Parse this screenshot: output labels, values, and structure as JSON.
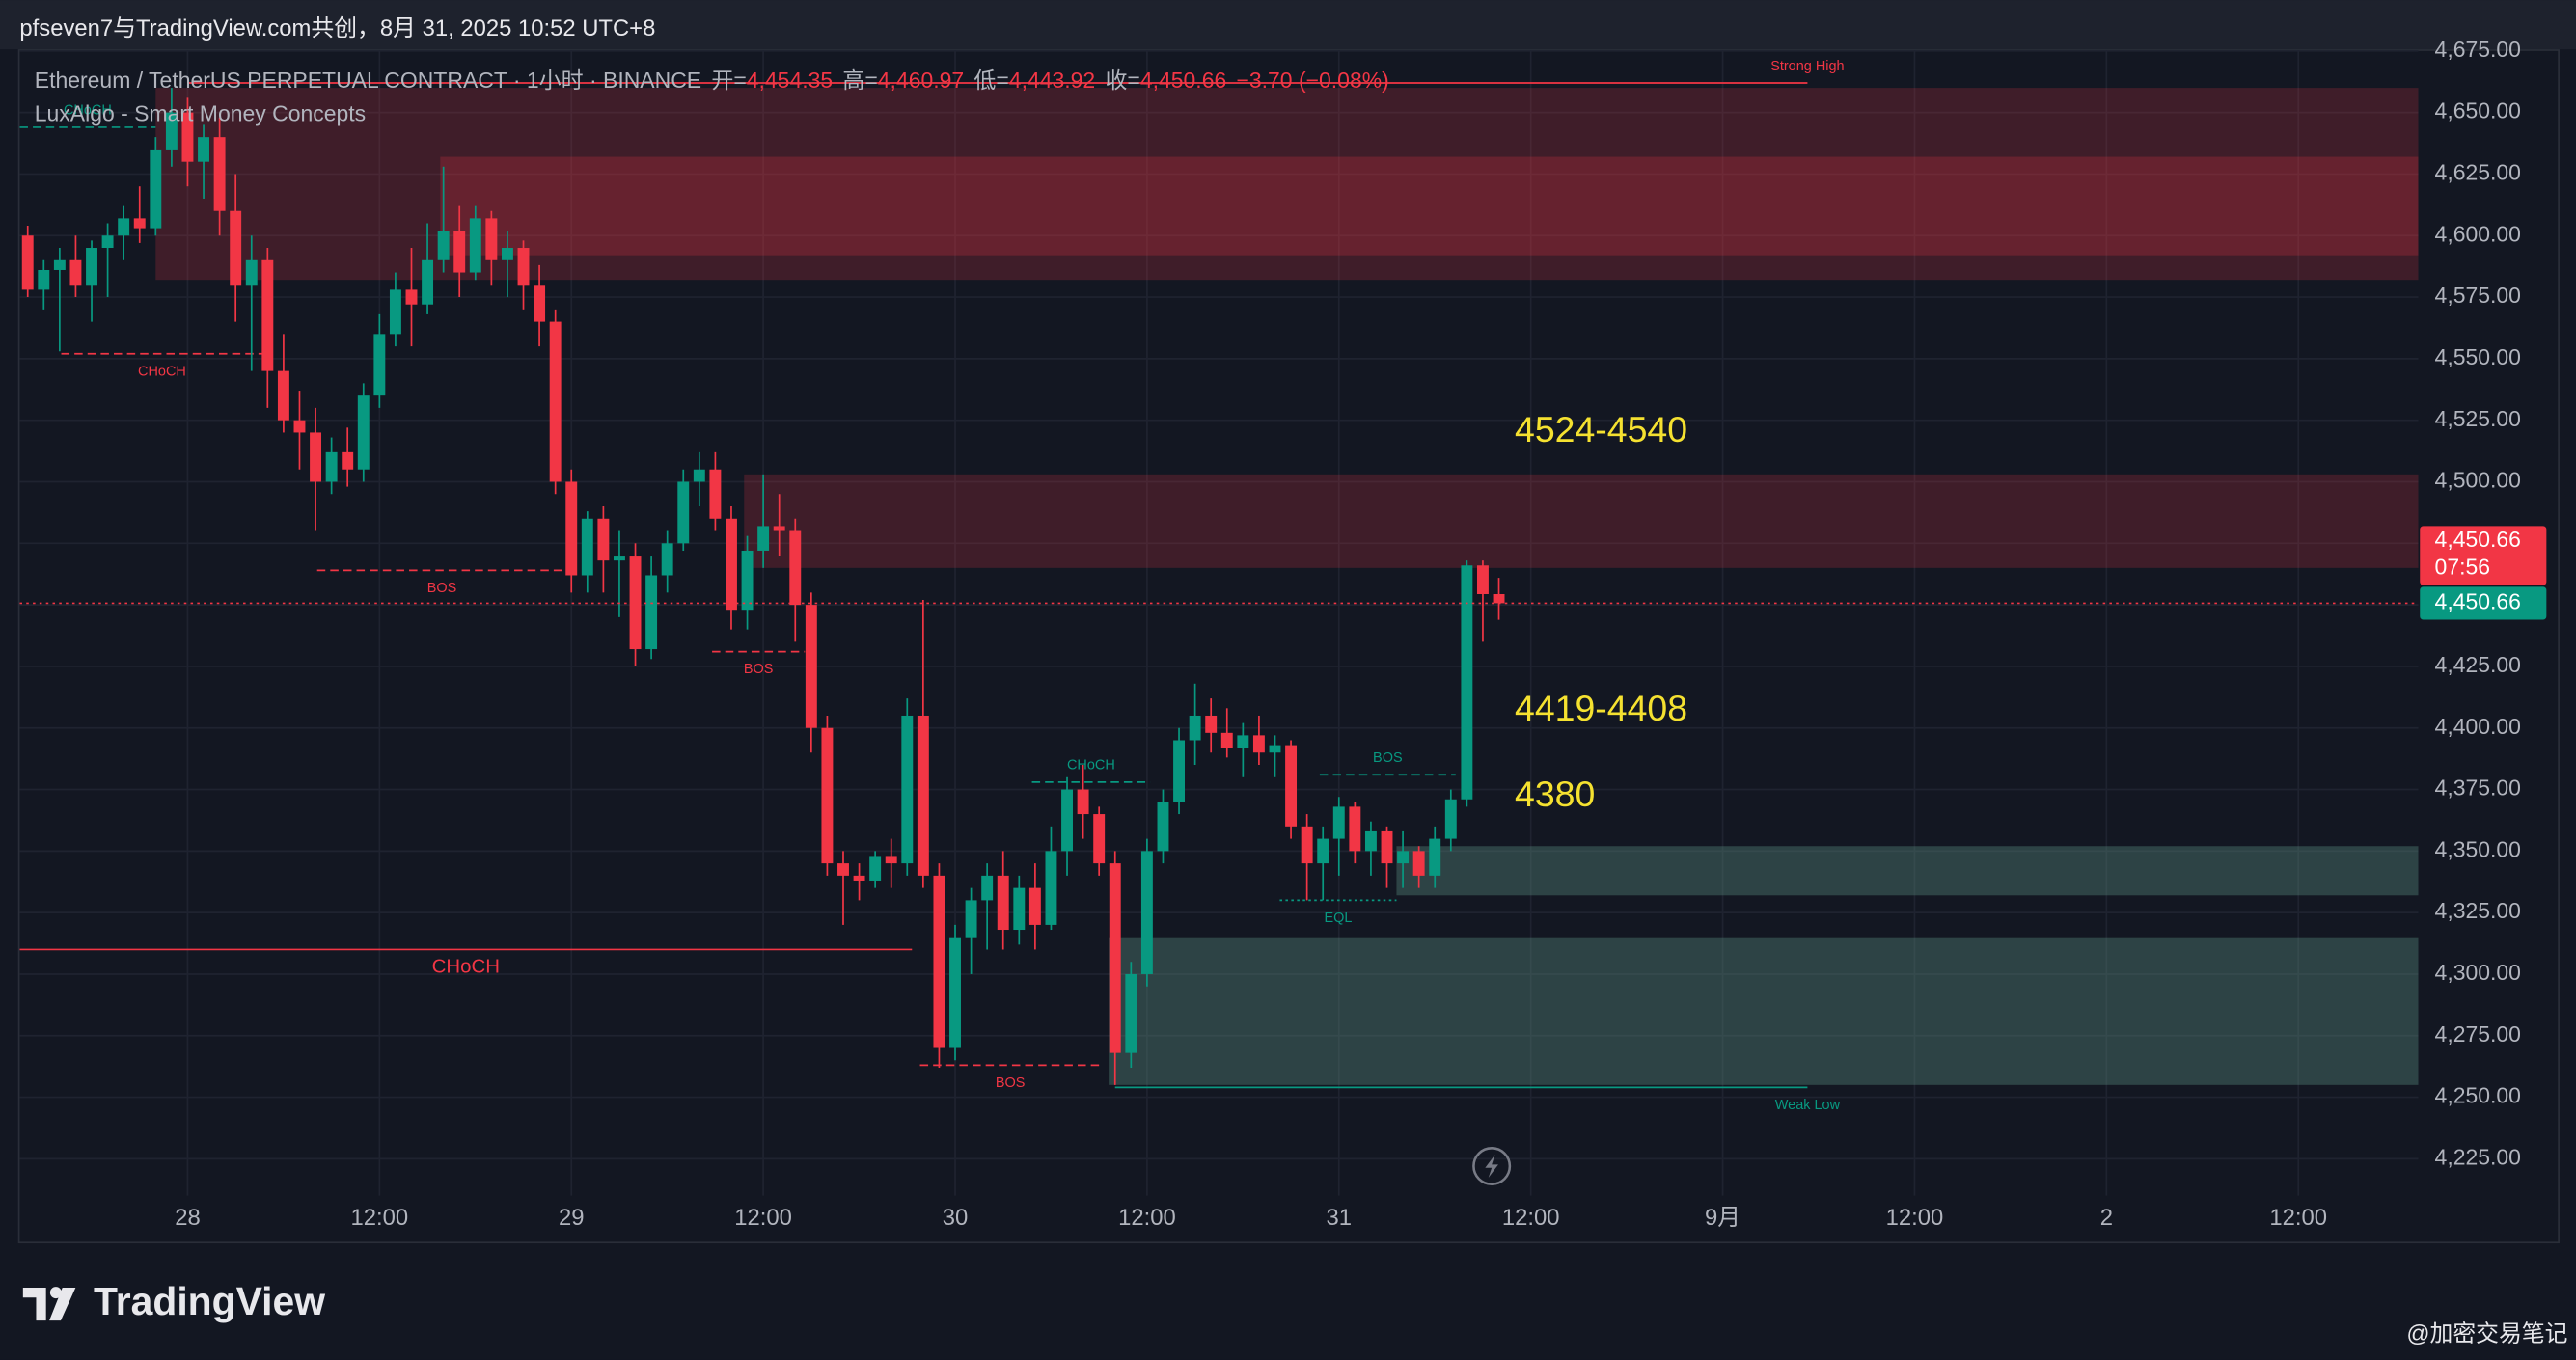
{
  "header": {
    "title": "pfseven7与TradingView.com共创，8月 31, 2025 10:52 UTC+8"
  },
  "chart_data": {
    "type": "candlestick",
    "legend": {
      "symbol": "Ethereum / TetherUS PERPETUAL CONTRACT · 1小时 · BINANCE",
      "fields": [
        {
          "label": "开=",
          "value": "4,454.35"
        },
        {
          "label": "高=",
          "value": "4,460.97"
        },
        {
          "label": "低=",
          "value": "4,443.92"
        },
        {
          "label": "收=",
          "value": "4,450.66"
        }
      ],
      "change": "−3.70 (−0.08%)",
      "indicator": "LuxAlgo - Smart Money Concepts"
    },
    "up_color": "#089981",
    "down_color": "#f23645",
    "open": [
      4600,
      4578,
      4586,
      4590,
      4580,
      4595,
      4600,
      4607,
      4603,
      4635,
      4650,
      4630,
      4640,
      4610,
      4580,
      4590,
      4545,
      4525,
      4520,
      4500,
      4512,
      4505,
      4535,
      4560,
      4578,
      4572,
      4590,
      4602,
      4585,
      4607,
      4590,
      4595,
      4580,
      4565,
      4500,
      4462,
      4485,
      4468,
      4470,
      4432,
      4462,
      4475,
      4500,
      4505,
      4485,
      4448,
      4472,
      4482,
      4480,
      4450,
      4400,
      4345,
      4340,
      4338,
      4348,
      4345,
      4405,
      4340,
      4270,
      4315,
      4330,
      4340,
      4318,
      4335,
      4320,
      4350,
      4375,
      4365,
      4345,
      4268,
      4300,
      4350,
      4370,
      4395,
      4405,
      4398,
      4392,
      4397,
      4390,
      4393,
      4360,
      4345,
      4355,
      4368,
      4350,
      4358,
      4345,
      4350,
      4340,
      4355,
      4371,
      4466,
      4454.35
    ],
    "high": [
      4604,
      4590,
      4595,
      4600,
      4598,
      4605,
      4612,
      4620,
      4640,
      4660,
      4656,
      4645,
      4648,
      4625,
      4600,
      4595,
      4560,
      4537,
      4530,
      4518,
      4522,
      4540,
      4568,
      4585,
      4595,
      4605,
      4628,
      4612,
      4612,
      4610,
      4602,
      4598,
      4588,
      4570,
      4505,
      4488,
      4490,
      4480,
      4475,
      4470,
      4480,
      4505,
      4512,
      4512,
      4490,
      4478,
      4503,
      4495,
      4485,
      4455,
      4405,
      4350,
      4345,
      4350,
      4355,
      4412,
      4452,
      4345,
      4320,
      4335,
      4345,
      4350,
      4340,
      4345,
      4360,
      4380,
      4385,
      4368,
      4350,
      4305,
      4355,
      4375,
      4400,
      4418,
      4412,
      4408,
      4402,
      4405,
      4397,
      4395,
      4365,
      4360,
      4372,
      4370,
      4362,
      4360,
      4358,
      4352,
      4360,
      4375,
      4468,
      4468,
      4460.97
    ],
    "low": [
      4575,
      4570,
      4553,
      4575,
      4565,
      4575,
      4590,
      4597,
      4600,
      4628,
      4620,
      4615,
      4600,
      4565,
      4545,
      4530,
      4520,
      4505,
      4480,
      4495,
      4498,
      4500,
      4530,
      4555,
      4555,
      4568,
      4585,
      4575,
      4582,
      4580,
      4575,
      4570,
      4555,
      4495,
      4455,
      4455,
      4455,
      4445,
      4425,
      4428,
      4455,
      4472,
      4490,
      4480,
      4440,
      4440,
      4465,
      4470,
      4435,
      4390,
      4340,
      4320,
      4330,
      4335,
      4335,
      4340,
      4335,
      4262,
      4265,
      4300,
      4310,
      4310,
      4312,
      4310,
      4318,
      4340,
      4355,
      4340,
      4255,
      4262,
      4295,
      4345,
      4365,
      4385,
      4390,
      4388,
      4380,
      4385,
      4380,
      4355,
      4330,
      4330,
      4340,
      4345,
      4340,
      4335,
      4335,
      4335,
      4335,
      4350,
      4368,
      4435,
      4443.92
    ],
    "close": [
      4578,
      4586,
      4590,
      4580,
      4595,
      4600,
      4607,
      4603,
      4635,
      4650,
      4630,
      4640,
      4610,
      4580,
      4590,
      4545,
      4525,
      4520,
      4500,
      4512,
      4505,
      4535,
      4560,
      4578,
      4572,
      4590,
      4602,
      4585,
      4607,
      4590,
      4595,
      4580,
      4565,
      4500,
      4462,
      4485,
      4468,
      4470,
      4432,
      4462,
      4475,
      4500,
      4505,
      4485,
      4448,
      4472,
      4482,
      4480,
      4450,
      4400,
      4345,
      4340,
      4338,
      4348,
      4345,
      4405,
      4340,
      4270,
      4315,
      4330,
      4340,
      4318,
      4335,
      4320,
      4350,
      4375,
      4365,
      4345,
      4268,
      4300,
      4350,
      4370,
      4395,
      4405,
      4398,
      4392,
      4397,
      4390,
      4393,
      4360,
      4345,
      4355,
      4368,
      4350,
      4358,
      4345,
      4350,
      4340,
      4355,
      4371,
      4466,
      4454.35,
      4450.66
    ],
    "xlim": [
      -0.5,
      149.5
    ],
    "xticks": [
      {
        "value": 10,
        "label": "28"
      },
      {
        "value": 22,
        "label": "12:00"
      },
      {
        "value": 34,
        "label": "29"
      },
      {
        "value": 46,
        "label": "12:00"
      },
      {
        "value": 58,
        "label": "30"
      },
      {
        "value": 70,
        "label": "12:00"
      },
      {
        "value": 82,
        "label": "31"
      },
      {
        "value": 94,
        "label": "12:00"
      },
      {
        "value": 106,
        "label": "9月"
      },
      {
        "value": 118,
        "label": "12:00"
      },
      {
        "value": 130,
        "label": "2"
      },
      {
        "value": 142,
        "label": "12:00"
      }
    ],
    "ylim": [
      4210,
      4677
    ],
    "yticks": [
      {
        "value": 4225,
        "label": "4,225.00"
      },
      {
        "value": 4250,
        "label": "4,250.00"
      },
      {
        "value": 4275,
        "label": "4,275.00"
      },
      {
        "value": 4300,
        "label": "4,300.00"
      },
      {
        "value": 4325,
        "label": "4,325.00"
      },
      {
        "value": 4350,
        "label": "4,350.00"
      },
      {
        "value": 4375,
        "label": "4,375.00"
      },
      {
        "value": 4400,
        "label": "4,400.00"
      },
      {
        "value": 4425,
        "label": "4,425.00"
      },
      {
        "value": 4450,
        "label": "4,450.00"
      },
      {
        "value": 4475,
        "label": "4,475.00"
      },
      {
        "value": 4500,
        "label": "4,500.00"
      },
      {
        "value": 4525,
        "label": "4,525.00"
      },
      {
        "value": 4550,
        "label": "4,550.00"
      },
      {
        "value": 4575,
        "label": "4,575.00"
      },
      {
        "value": 4600,
        "label": "4,600.00"
      },
      {
        "value": 4625,
        "label": "4,625.00"
      },
      {
        "value": 4650,
        "label": "4,650.00"
      },
      {
        "value": 4675,
        "label": "4,675.00"
      }
    ],
    "grid": true,
    "zones": [
      {
        "from": 8,
        "top": 4660,
        "bottom": 4582,
        "color": "rgba(242,54,69,0.2)"
      },
      {
        "from": 25.8,
        "top": 4632,
        "bottom": 4592,
        "color": "rgba(242,54,69,0.22)"
      },
      {
        "from": 44.8,
        "top": 4503,
        "bottom": 4465,
        "color": "rgba(242,54,69,0.2)"
      },
      {
        "from": 85.6,
        "top": 4352,
        "bottom": 4332,
        "color": "rgba(90,140,125,0.38)"
      },
      {
        "from": 67.6,
        "top": 4315,
        "bottom": 4255,
        "color": "rgba(90,140,125,0.38)"
      }
    ],
    "structures": [
      {
        "label": "CHoCH",
        "value": 4644,
        "from": -0.5,
        "to": 8,
        "color": "#089981",
        "style": "dashed",
        "label_pos": "above",
        "label_at": "middle"
      },
      {
        "label": "CHoCH",
        "value": 4552,
        "from": 2.1,
        "to": 14.7,
        "color": "#f23645",
        "style": "dashed",
        "label_pos": "below",
        "label_at": "middle"
      },
      {
        "label": "BOS",
        "value": 4464,
        "from": 18.1,
        "to": 33.7,
        "color": "#f23645",
        "style": "dashed",
        "label_pos": "below",
        "label_at": "middle"
      },
      {
        "label": "BOS",
        "value": 4431,
        "from": 42.8,
        "to": 48.6,
        "color": "#f23645",
        "style": "dashed",
        "label_pos": "below",
        "label_at": "middle"
      },
      {
        "label": "BOS",
        "value": 4263,
        "from": 55.8,
        "to": 67.1,
        "color": "#f23645",
        "style": "dashed",
        "label_pos": "below",
        "label_at": "middle"
      },
      {
        "label": "CHoCH",
        "value": 4378,
        "from": 62.8,
        "to": 70.2,
        "color": "#089981",
        "style": "dashed",
        "label_pos": "above",
        "label_at": "middle"
      },
      {
        "label": "BOS",
        "value": 4381,
        "from": 80.8,
        "to": 89.3,
        "color": "#089981",
        "style": "dashed",
        "label_pos": "above",
        "label_at": "middle"
      },
      {
        "label": "EQL",
        "value": 4330,
        "from": 78.3,
        "to": 85.6,
        "color": "#089981",
        "style": "dotted",
        "label_pos": "below",
        "label_at": "middle"
      },
      {
        "label": "CHoCH",
        "value": 4310,
        "from": -0.5,
        "to": 55.3,
        "color": "#f23645",
        "style": "solid",
        "label_pos": "below",
        "label_at": "middle"
      },
      {
        "label": "Strong High",
        "value": 4662,
        "from": 10,
        "to": 111.3,
        "color": "#f23645",
        "style": "solid",
        "label_pos": "above",
        "label_at": "end"
      },
      {
        "label": "Weak Low",
        "value": 4254,
        "from": 68,
        "to": 111.3,
        "color": "#089981",
        "style": "solid",
        "label_pos": "below",
        "label_at": "end"
      }
    ],
    "annotations": [
      "4524-4540",
      "4419-4408",
      "4380"
    ],
    "last_price": {
      "value": 4450.66,
      "label": "4,450.66",
      "countdown": "07:56"
    }
  },
  "footer": {
    "logo": "TradingView",
    "watermark": "@加密交易笔记"
  }
}
